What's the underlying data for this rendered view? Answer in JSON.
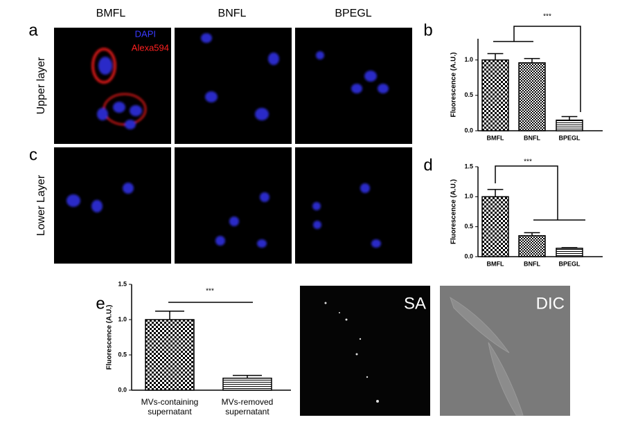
{
  "figure": {
    "columns": [
      "BMFL",
      "BNFL",
      "BPEGL"
    ],
    "rows": [
      "Upper layer",
      "Lower Layer"
    ],
    "panels": [
      "a",
      "b",
      "c",
      "d",
      "e"
    ],
    "stains": [
      "DAPI",
      "Alexa594"
    ],
    "images": [
      "SA",
      "DIC"
    ]
  },
  "chart_data": [
    {
      "type": "bar",
      "ylabel": "Fluorescence (A.U.)",
      "categories": [
        "BMFL",
        "BNFL",
        "BPEGL"
      ],
      "series": [
        {
          "values": [
            1.0,
            0.96,
            0.15
          ],
          "errors": [
            0.09,
            0.06,
            0.05
          ]
        }
      ],
      "patterns": [
        "checker",
        "checker-fine",
        "hstripe"
      ],
      "ylim": [
        0,
        1.3
      ],
      "yticks": [
        {
          "value": 0,
          "label": "0.0"
        },
        0.5,
        {
          "value": 1,
          "label": "1.0"
        }
      ],
      "annotation": "***"
    },
    {
      "type": "bar",
      "ylabel": "Fluorescence (A.U.)",
      "categories": [
        "BMFL",
        "BNFL",
        "BPEGL"
      ],
      "series": [
        {
          "values": [
            1.0,
            0.35,
            0.14
          ],
          "errors": [
            0.12,
            0.05,
            0.01
          ]
        }
      ],
      "patterns": [
        "checker",
        "checker-fine",
        "hstripe"
      ],
      "ylim": [
        0,
        1.5
      ],
      "yticks": [
        {
          "value": 0,
          "label": "0.0"
        },
        0.5,
        {
          "value": 1,
          "label": "1.0"
        },
        1.5
      ],
      "annotation": "***"
    },
    {
      "type": "bar",
      "ylabel": "Fluorescence (A.U.)",
      "categories": [
        "MVs-containing supernatant",
        "MVs-removed supernatant"
      ],
      "series": [
        {
          "values": [
            1.0,
            0.17
          ],
          "errors": [
            0.12,
            0.04
          ]
        }
      ],
      "patterns": [
        "checker",
        "hstripe"
      ],
      "ylim": [
        0,
        1.5
      ],
      "yticks": [
        {
          "value": 0,
          "label": "0.0"
        },
        0.5,
        {
          "value": 1,
          "label": "1.0"
        },
        1.5
      ],
      "annotation": "***"
    }
  ]
}
